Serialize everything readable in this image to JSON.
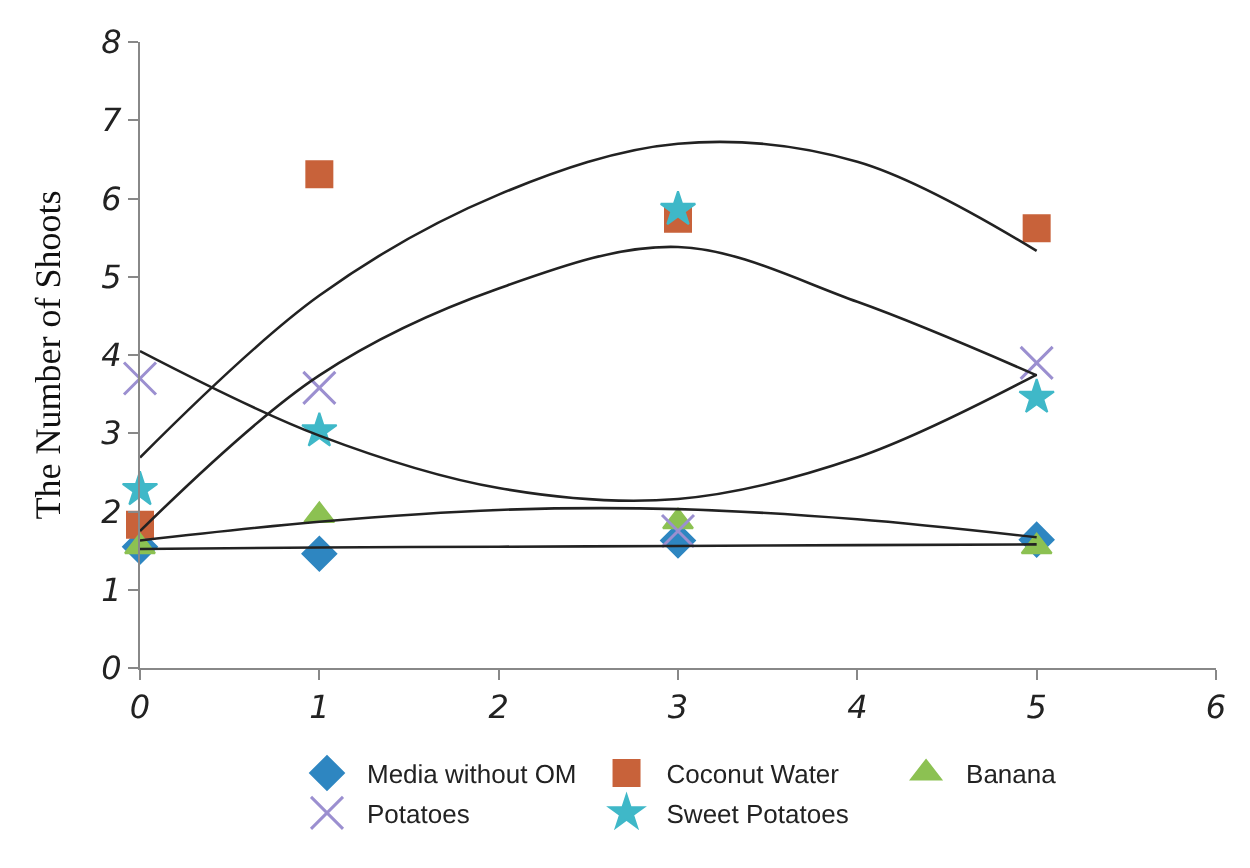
{
  "chart_data": {
    "type": "scatter",
    "ylabel": "The Number of Shoots",
    "xlim": [
      0,
      6
    ],
    "ylim": [
      0,
      8
    ],
    "xticks": [
      0,
      1,
      2,
      3,
      4,
      5,
      6
    ],
    "yticks": [
      0,
      1,
      2,
      3,
      4,
      5,
      6,
      7,
      8
    ],
    "legend": "bottom",
    "series": [
      {
        "name": "Media without OM",
        "color": "#2e86c1",
        "marker": "diamond",
        "x": [
          0,
          1,
          3,
          5
        ],
        "values": [
          1.55,
          1.46,
          1.63,
          1.64
        ]
      },
      {
        "name": "Coconut Water",
        "color": "#c8623a",
        "marker": "square",
        "x": [
          0,
          1,
          3,
          5
        ],
        "values": [
          1.83,
          6.31,
          5.74,
          5.62
        ]
      },
      {
        "name": "Banana",
        "color": "#8cc152",
        "marker": "triangle",
        "x": [
          0,
          1,
          3,
          5
        ],
        "values": [
          1.55,
          1.95,
          1.87,
          1.55
        ]
      },
      {
        "name": "Potatoes",
        "color": "#9b8fd0",
        "marker": "cross",
        "x": [
          0,
          1,
          3,
          5
        ],
        "values": [
          3.7,
          3.58,
          1.75,
          3.9
        ]
      },
      {
        "name": "Sweet Potatoes",
        "color": "#3fb8c8",
        "marker": "star",
        "x": [
          0,
          1,
          3,
          5
        ],
        "values": [
          2.28,
          3.03,
          5.86,
          3.46
        ]
      },
      {
        "type": "line",
        "color": "#222222",
        "marker": "none",
        "x": [
          0,
          1,
          2,
          3,
          4,
          5
        ],
        "values": [
          1.52,
          1.54,
          1.55,
          1.56,
          1.57,
          1.58
        ]
      },
      {
        "type": "line",
        "color": "#222222",
        "marker": "none",
        "x": [
          0,
          1,
          2,
          3,
          4,
          5
        ],
        "values": [
          2.69,
          4.76,
          6.05,
          6.7,
          6.47,
          5.33
        ]
      },
      {
        "type": "line",
        "color": "#222222",
        "marker": "none",
        "x": [
          0,
          1,
          2,
          3,
          4,
          5
        ],
        "values": [
          1.63,
          1.87,
          2.02,
          2.03,
          1.9,
          1.67
        ]
      },
      {
        "type": "line",
        "color": "#222222",
        "marker": "none",
        "x": [
          0,
          1,
          2,
          3,
          4,
          5
        ],
        "values": [
          4.05,
          2.97,
          2.3,
          2.16,
          2.69,
          3.75
        ]
      },
      {
        "type": "line",
        "color": "#222222",
        "marker": "none",
        "x": [
          0,
          1,
          2,
          3,
          4,
          5
        ],
        "values": [
          1.75,
          3.74,
          4.85,
          5.38,
          4.68,
          3.74
        ]
      }
    ]
  }
}
